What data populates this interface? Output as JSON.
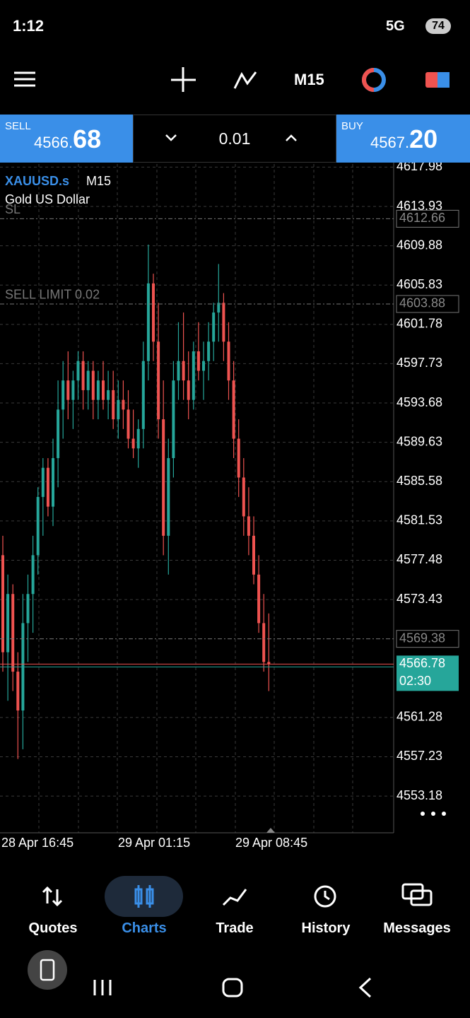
{
  "status_bar": {
    "time": "1:12",
    "network": "5G",
    "battery": "74"
  },
  "toolbar": {
    "timeframe": "M15"
  },
  "trade_panel": {
    "sell_label": "SELL",
    "sell_price_main": "4566.",
    "sell_price_pips": "68",
    "lot": "0.01",
    "buy_label": "BUY",
    "buy_price_main": "4567.",
    "buy_price_pips": "20"
  },
  "chart_data": {
    "type": "candlestick",
    "symbol": "XAUUSD.s",
    "timeframe": "M15",
    "description": "Gold US Dollar",
    "up_color": "#26a69a",
    "down_color": "#ef5350",
    "ylim": [
      4549.4,
      4618.3
    ],
    "yticks": [
      4617.98,
      4613.93,
      4609.88,
      4605.83,
      4601.78,
      4597.73,
      4593.68,
      4589.63,
      4585.58,
      4581.53,
      4577.48,
      4573.43,
      4561.28,
      4557.23,
      4553.18
    ],
    "x_labels": [
      "28 Apr 16:45",
      "29 Apr 01:15",
      "29 Apr 08:45"
    ],
    "open": [
      4578,
      4568,
      4574,
      4566,
      4562,
      4571,
      4574,
      4578,
      4584,
      4587,
      4583,
      4588,
      4593,
      4596,
      4594,
      4596,
      4598,
      4595,
      4597,
      4594,
      4596,
      4594,
      4595,
      4592,
      4594,
      4593,
      4590,
      4589,
      4591,
      4598,
      4606,
      4600,
      4592,
      4580,
      4588,
      4596,
      4598,
      4596,
      4594,
      4599,
      4597,
      4598,
      4600,
      4603,
      4604,
      4600,
      4596,
      4590,
      4586,
      4582,
      4580,
      4576,
      4571,
      4567
    ],
    "high": [
      4580,
      4576,
      4575,
      4568,
      4574,
      4576,
      4580,
      4585,
      4588,
      4588,
      4590,
      4596,
      4598,
      4599,
      4597,
      4599,
      4599,
      4598,
      4598,
      4597,
      4598,
      4597,
      4597,
      4596,
      4596,
      4595,
      4593,
      4592,
      4600,
      4610,
      4607,
      4604,
      4596,
      4590,
      4598,
      4602,
      4603,
      4599,
      4600,
      4602,
      4600,
      4602,
      4604,
      4608,
      4605,
      4602,
      4598,
      4592,
      4588,
      4585,
      4582,
      4578,
      4574,
      4572
    ],
    "low": [
      4566,
      4563,
      4564,
      4557,
      4558,
      4567,
      4570,
      4576,
      4580,
      4582,
      4581,
      4585,
      4590,
      4592,
      4591,
      4594,
      4593,
      4593,
      4592,
      4592,
      4593,
      4592,
      4591,
      4590,
      4591,
      4589,
      4588,
      4587,
      4589,
      4596,
      4598,
      4590,
      4578,
      4576,
      4586,
      4594,
      4594,
      4592,
      4593,
      4596,
      4594,
      4596,
      4598,
      4600,
      4598,
      4594,
      4588,
      4584,
      4580,
      4578,
      4575,
      4570,
      4566,
      4564
    ],
    "close": [
      4568,
      4574,
      4566,
      4562,
      4571,
      4574,
      4578,
      4584,
      4587,
      4583,
      4588,
      4593,
      4596,
      4594,
      4596,
      4598,
      4595,
      4597,
      4594,
      4596,
      4594,
      4595,
      4592,
      4594,
      4593,
      4590,
      4589,
      4591,
      4598,
      4606,
      4600,
      4592,
      4580,
      4588,
      4596,
      4598,
      4596,
      4594,
      4599,
      4597,
      4598,
      4600,
      4603,
      4604,
      4600,
      4596,
      4590,
      4586,
      4582,
      4580,
      4576,
      4571,
      4567,
      4566.78
    ],
    "levels": [
      {
        "label": "SL",
        "price": 4612.66
      },
      {
        "label": "SELL LIMIT 0.02",
        "price": 4603.88
      },
      {
        "price": 4569.38
      }
    ],
    "current_price": 4566.78,
    "bar_timer": "02:30"
  },
  "nav": [
    "Quotes",
    "Charts",
    "Trade",
    "History",
    "Messages"
  ]
}
